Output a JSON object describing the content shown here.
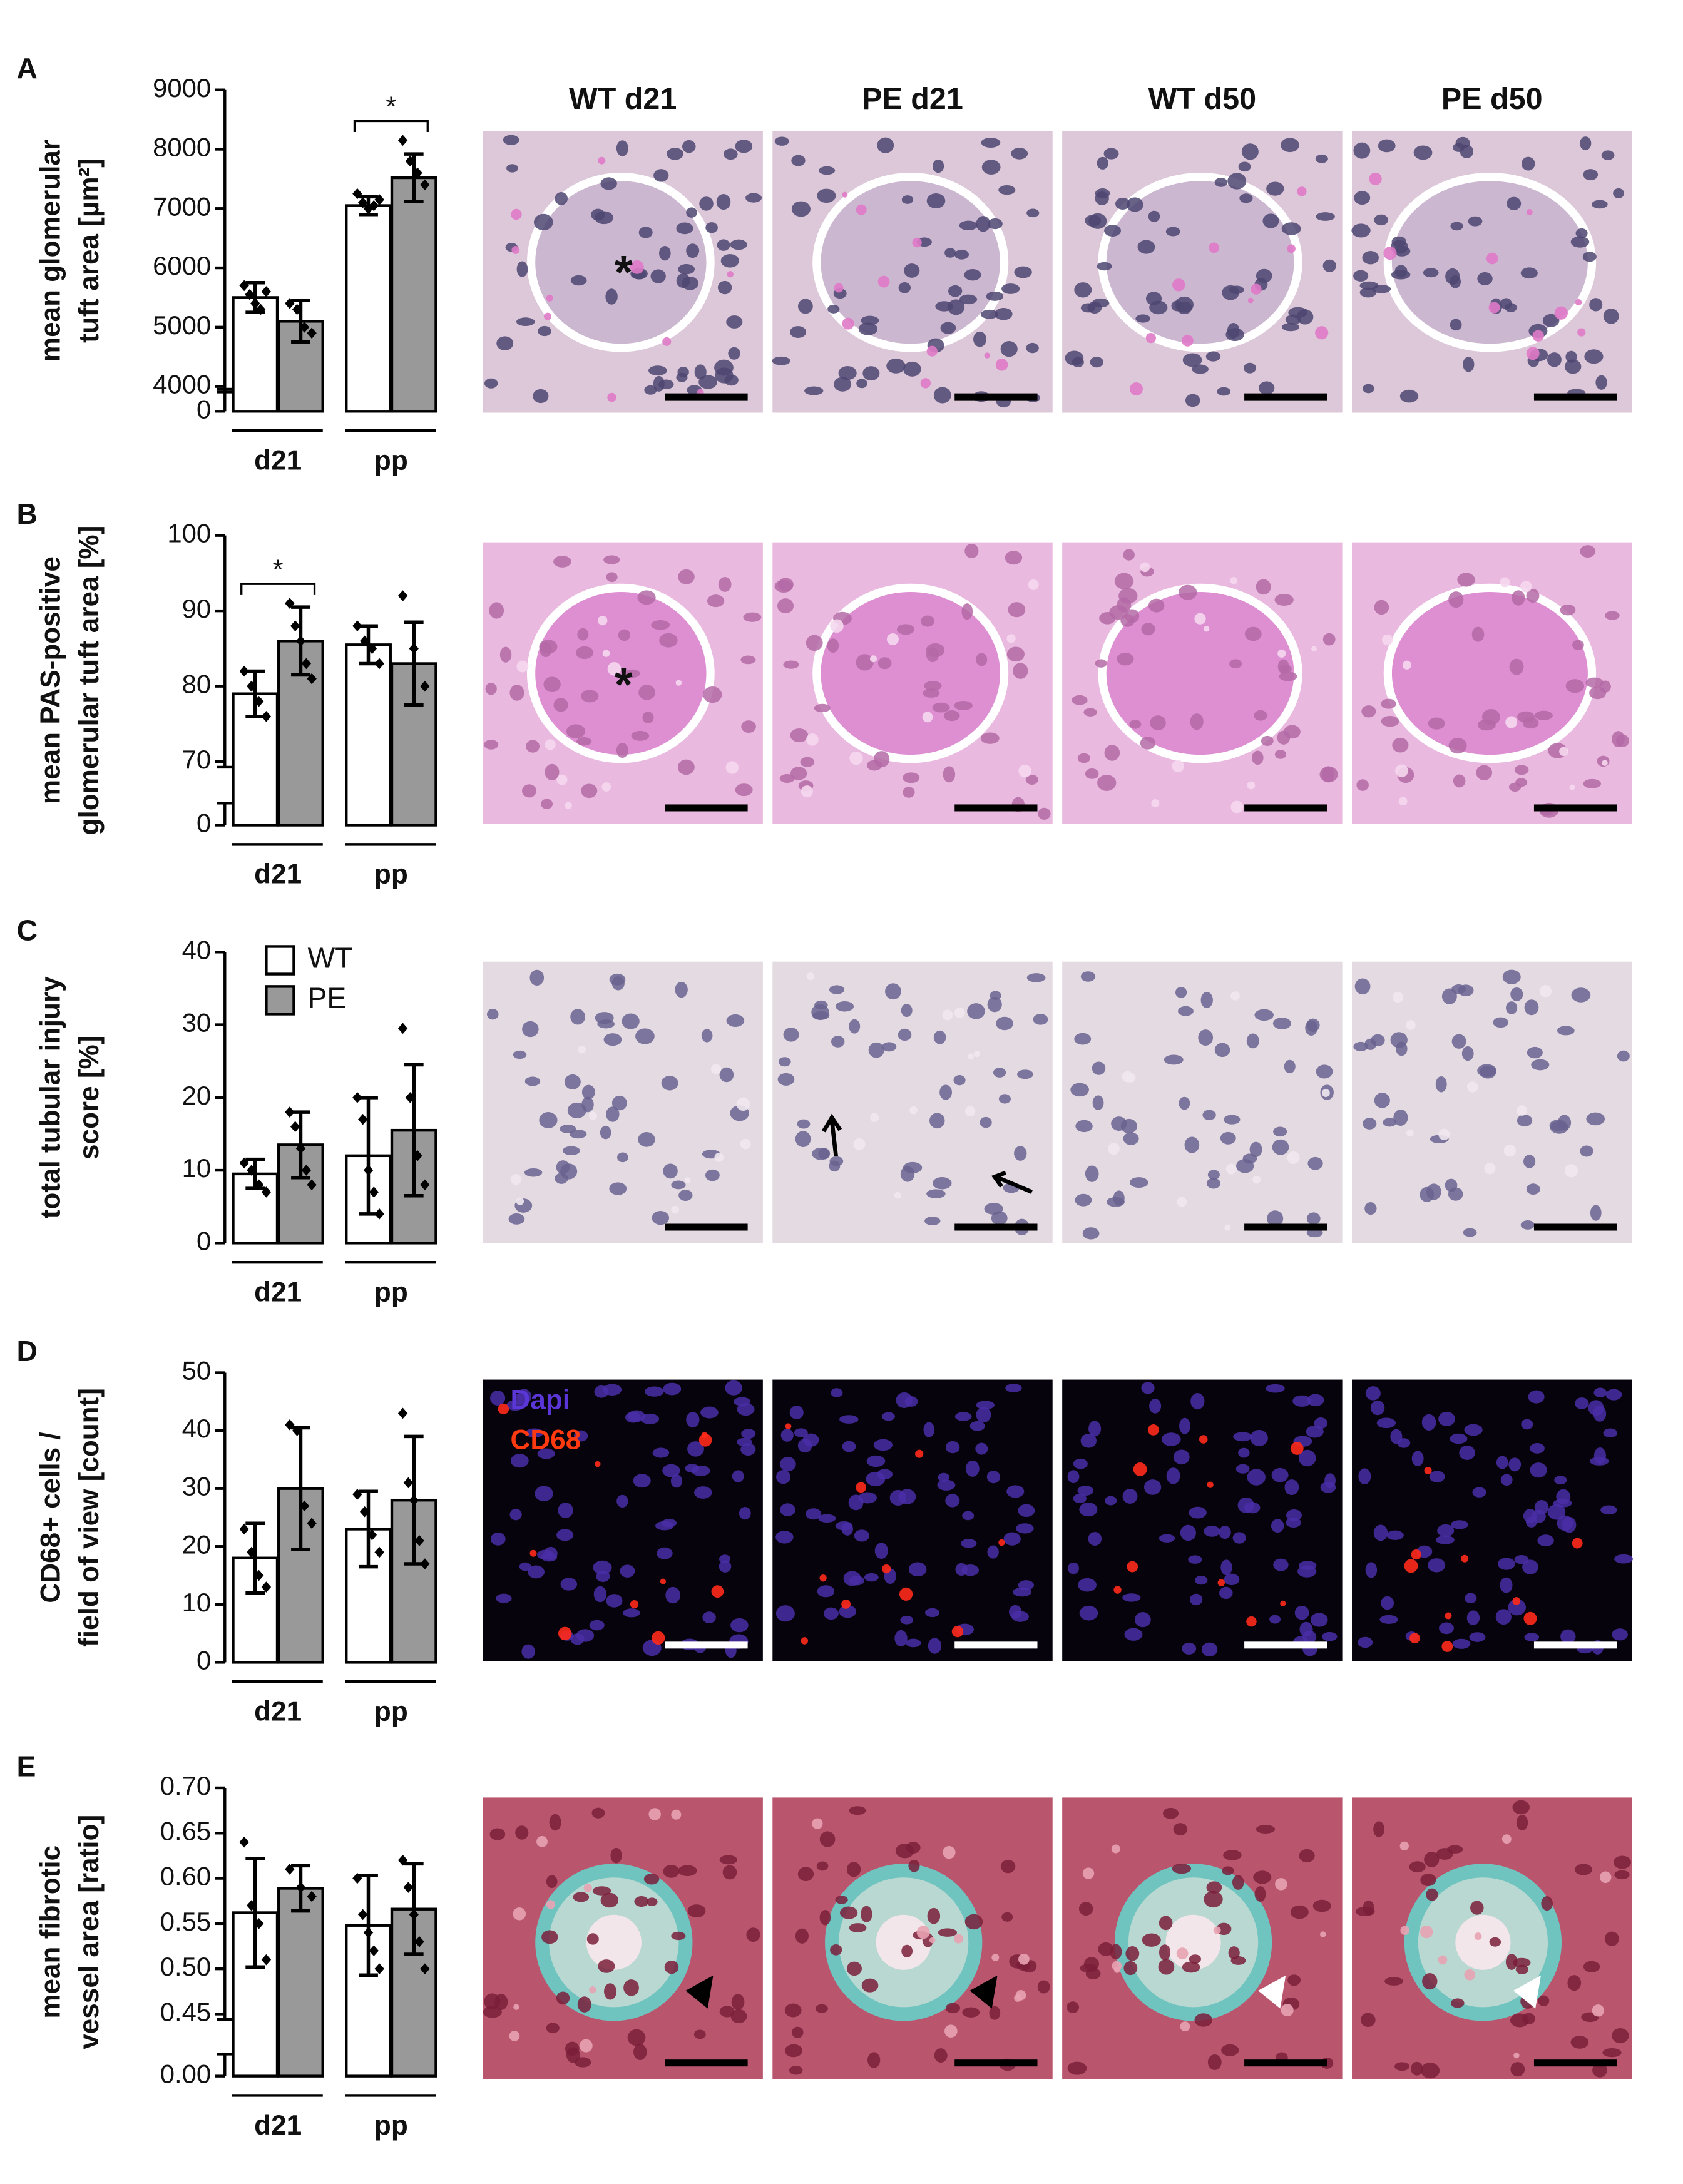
{
  "chart_data": [
    {
      "type": "bar",
      "panel": "A",
      "ylabel": [
        "mean glomerular",
        "tuft area [µm²]"
      ],
      "categories": [
        "d21",
        "pp"
      ],
      "series": [
        {
          "color": "#ffffff",
          "values": [
            5500,
            7050
          ],
          "errors": [
            250,
            150
          ],
          "points": [
            [
              5700,
              5550,
              5400,
              5300,
              5600
            ],
            [
              7250,
              7100,
              7000,
              7050,
              7150
            ]
          ]
        },
        {
          "color": "#999999",
          "values": [
            5100,
            7520
          ],
          "errors": [
            350,
            400
          ],
          "points": [
            [
              5400,
              5300,
              5000,
              4900
            ],
            [
              8150,
              7800,
              7600,
              7400
            ]
          ]
        }
      ],
      "ylim": [
        4000,
        9000
      ],
      "yticks": [
        4000,
        5000,
        6000,
        7000,
        8000,
        9000
      ],
      "break_tick": 0,
      "significance": [
        {
          "category": "pp",
          "label": "*"
        }
      ]
    },
    {
      "type": "bar",
      "panel": "B",
      "ylabel": [
        "mean PAS-positive",
        "glomerular tuft area [%]"
      ],
      "categories": [
        "d21",
        "pp"
      ],
      "series": [
        {
          "color": "#ffffff",
          "values": [
            79,
            85.5
          ],
          "errors": [
            3,
            2.5
          ],
          "points": [
            [
              82,
              80,
              78,
              76
            ],
            [
              88,
              86,
              85,
              83
            ]
          ]
        },
        {
          "color": "#999999",
          "values": [
            86,
            83
          ],
          "errors": [
            4.5,
            5.5
          ],
          "points": [
            [
              91,
              88,
              86,
              83,
              81
            ],
            [
              92,
              85,
              80
            ]
          ]
        }
      ],
      "ylim": [
        70,
        100
      ],
      "yticks": [
        70,
        80,
        90,
        100
      ],
      "break_tick": 0,
      "significance": [
        {
          "category": "d21",
          "label": "*"
        }
      ]
    },
    {
      "type": "bar",
      "panel": "C",
      "ylabel": [
        "total tubular injury",
        "score [%]"
      ],
      "categories": [
        "d21",
        "pp"
      ],
      "series": [
        {
          "name": "WT",
          "color": "#ffffff",
          "values": [
            9.5,
            12
          ],
          "errors": [
            2,
            8
          ],
          "points": [
            [
              11,
              10,
              8,
              7
            ],
            [
              20,
              17,
              10,
              7,
              4
            ]
          ]
        },
        {
          "name": "PE",
          "color": "#999999",
          "values": [
            13.5,
            15.5
          ],
          "errors": [
            4.5,
            9
          ],
          "points": [
            [
              18,
              16,
              13,
              10,
              8
            ],
            [
              29.5,
              20,
              12,
              8
            ]
          ]
        }
      ],
      "ylim": [
        0,
        40
      ],
      "yticks": [
        0,
        10,
        20,
        30,
        40
      ],
      "legend": "upper left"
    },
    {
      "type": "bar",
      "panel": "D",
      "ylabel": [
        "CD68+ cells /",
        "field of view [count]"
      ],
      "categories": [
        "d21",
        "pp"
      ],
      "series": [
        {
          "color": "#ffffff",
          "values": [
            18,
            23
          ],
          "errors": [
            6,
            6.5
          ],
          "points": [
            [
              23,
              19,
              15,
              13
            ],
            [
              29,
              26,
              22,
              19
            ]
          ]
        },
        {
          "color": "#999999",
          "values": [
            30,
            28
          ],
          "errors": [
            10.5,
            11
          ],
          "points": [
            [
              41,
              40,
              27,
              24
            ],
            [
              43,
              31,
              28,
              21,
              17
            ]
          ]
        }
      ],
      "ylim": [
        0,
        50
      ],
      "yticks": [
        0,
        10,
        20,
        30,
        40,
        50
      ]
    },
    {
      "type": "bar",
      "panel": "E",
      "ylabel": [
        "mean fibrotic",
        "vessel area [ratio]"
      ],
      "categories": [
        "d21",
        "pp"
      ],
      "series": [
        {
          "color": "#ffffff",
          "values": [
            0.562,
            0.548
          ],
          "errors": [
            0.06,
            0.055
          ],
          "points": [
            [
              0.64,
              0.57,
              0.55,
              0.51
            ],
            [
              0.6,
              0.56,
              0.54,
              0.52,
              0.5
            ]
          ]
        },
        {
          "color": "#999999",
          "values": [
            0.589,
            0.566
          ],
          "errors": [
            0.025,
            0.05
          ],
          "points": [
            [
              0.61,
              0.59,
              0.58
            ],
            [
              0.62,
              0.59,
              0.56,
              0.53,
              0.5
            ]
          ]
        }
      ],
      "ylim": [
        0.45,
        0.7
      ],
      "yticks": [
        {
          "value": 0.45,
          "label": "0.45"
        },
        {
          "value": 0.5,
          "label": "0.50"
        },
        0.55,
        {
          "value": 0.6,
          "label": "0.60"
        },
        0.65,
        {
          "value": 0.7,
          "label": "0.70"
        }
      ],
      "break_tick": {
        "value": 0,
        "label": "0.00"
      }
    }
  ],
  "micrographs": {
    "columns": [
      "WT d21",
      "PE d21",
      "WT d50",
      "PE d50"
    ],
    "asterisk": "*",
    "stain_labels": [
      "Dapi",
      "CD68"
    ]
  }
}
